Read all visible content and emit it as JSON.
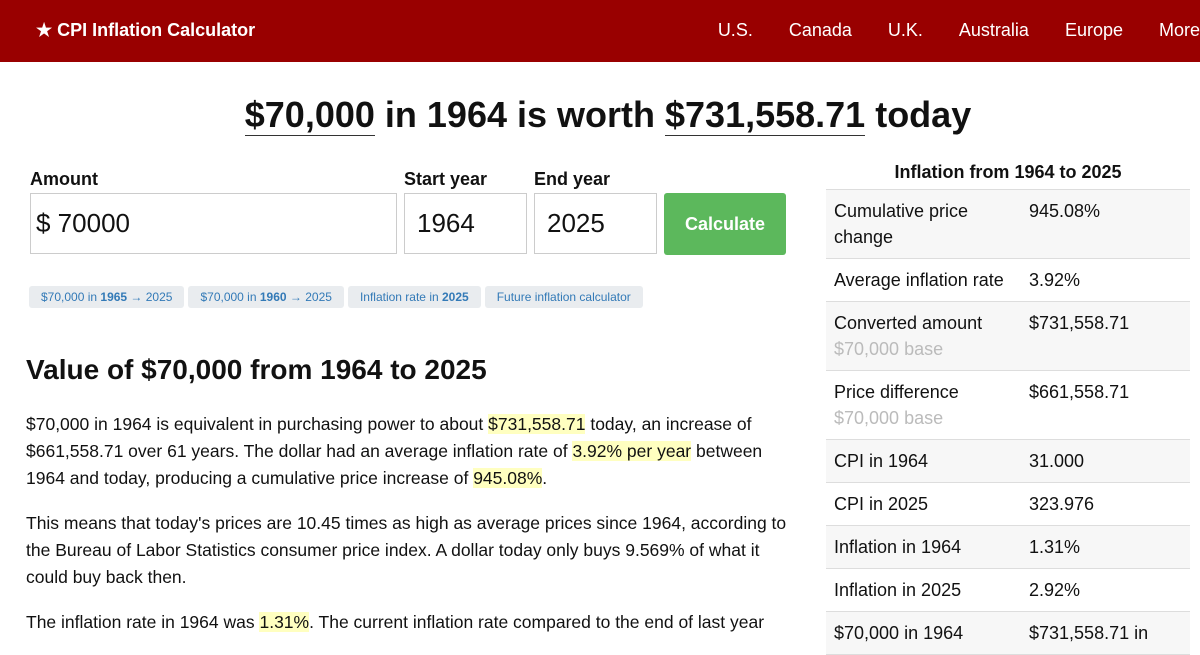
{
  "nav": {
    "brand": "★ CPI Inflation Calculator",
    "links": [
      "U.S.",
      "Canada",
      "U.K.",
      "Australia",
      "Europe",
      "More"
    ]
  },
  "headline": {
    "amount": "$70,000",
    "middle": " in 1964 is worth ",
    "result": "$731,558.71",
    "end": " today"
  },
  "form": {
    "amount_label": "Amount",
    "start_label": "Start year",
    "end_label": "End year",
    "amount_value": "$ 70000",
    "start_value": "1964",
    "end_value": "2025",
    "button": "Calculate"
  },
  "chips": [
    [
      {
        "text": "$70,000 in "
      },
      {
        "text": "1965",
        "bold": true
      },
      {
        "text": " → 2025"
      }
    ],
    [
      {
        "text": "$70,000 in "
      },
      {
        "text": "1960",
        "bold": true
      },
      {
        "text": " → 2025"
      }
    ],
    [
      {
        "text": "Inflation rate in "
      },
      {
        "text": "2025",
        "bold": true
      }
    ],
    [
      {
        "text": "Future inflation calculator"
      }
    ]
  ],
  "section_title": "Value of $70,000 from 1964 to 2025",
  "paragraphs": [
    [
      {
        "text": "$70,000 in 1964 is equivalent in purchasing power to about "
      },
      {
        "text": "$731,558.71",
        "highlight": true
      },
      {
        "text": " today, an increase of $661,558.71 over 61 years. The dollar had an average inflation rate of "
      },
      {
        "text": "3.92% per year",
        "highlight": true
      },
      {
        "text": " between 1964 and today, producing a cumulative price increase of "
      },
      {
        "text": "945.08%",
        "highlight": true
      },
      {
        "text": "."
      }
    ],
    [
      {
        "text": "This means that today's prices are 10.45 times as high as average prices since 1964, according to the Bureau of Labor Statistics consumer price index. A dollar today only buys 9.569% of what it could buy back then."
      }
    ],
    [
      {
        "text": "The inflation rate in 1964 was "
      },
      {
        "text": "1.31%",
        "highlight": true
      },
      {
        "text": ". The current inflation rate compared to the end of last year"
      }
    ]
  ],
  "sidebar": {
    "title": "Inflation from 1964 to 2025",
    "rows": [
      {
        "label": "Cumulative price change",
        "value": "945.08%"
      },
      {
        "label": "Average inflation rate",
        "value": "3.92%"
      },
      {
        "label": "Converted amount",
        "note": "$70,000 base",
        "value": "$731,558.71"
      },
      {
        "label": "Price difference",
        "note": "$70,000 base",
        "value": "$661,558.71"
      },
      {
        "label": "CPI in 1964",
        "value": "31.000"
      },
      {
        "label": "CPI in 2025",
        "value": "323.976"
      },
      {
        "label": "Inflation in 1964",
        "value": "1.31%"
      },
      {
        "label": "Inflation in 2025",
        "value": "2.92%"
      },
      {
        "label": "$70,000 in 1964",
        "value": "$731,558.71 in"
      }
    ]
  }
}
